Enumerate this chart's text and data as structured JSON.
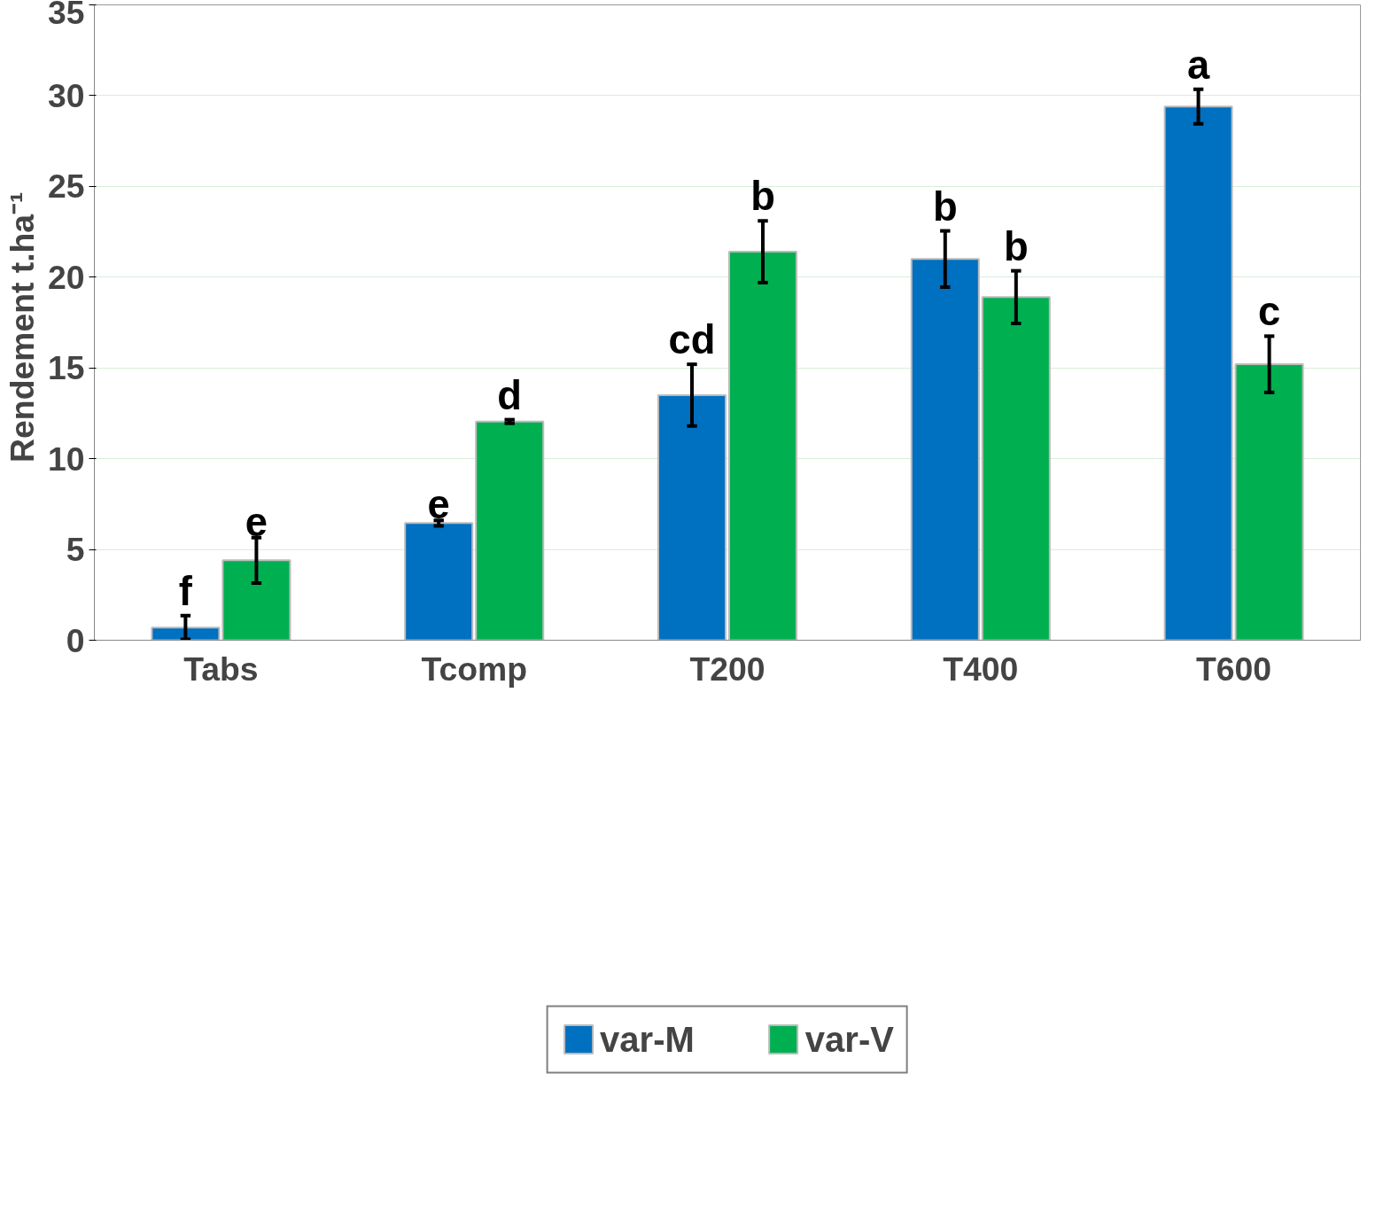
{
  "chart_data": {
    "type": "bar",
    "ylabel": "Rendement  t.ha⁻¹",
    "categories": [
      "Tabs",
      "Tcomp",
      "T200",
      "T400",
      "T600"
    ],
    "series": [
      {
        "name": "var-M",
        "color": "#0070c0",
        "values": [
          0.7,
          6.45,
          13.5,
          21.0,
          29.4
        ],
        "errors": [
          0.65,
          0.15,
          1.7,
          1.55,
          0.95
        ],
        "value_labels": [
          "f",
          "e",
          "cd",
          "b",
          "a"
        ]
      },
      {
        "name": "var-V",
        "color": "#00b050",
        "values": [
          4.4,
          12.05,
          21.4,
          18.9,
          15.2
        ],
        "errors": [
          1.25,
          0.1,
          1.7,
          1.45,
          1.55
        ],
        "value_labels": [
          "e",
          "d",
          "b",
          "b",
          "c"
        ]
      }
    ],
    "ylim": [
      0,
      35
    ],
    "yticks": [
      0,
      5,
      10,
      15,
      20,
      25,
      30,
      35
    ],
    "grid": "y",
    "legend": "bottom"
  }
}
